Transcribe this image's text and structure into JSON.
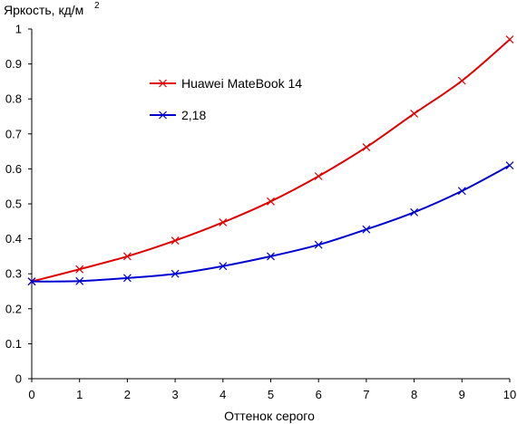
{
  "chart_data": {
    "type": "line",
    "ylabel": "Яркость, кд/м",
    "ylabel_sup": "2",
    "xlabel": "Оттенок серого",
    "xlim": [
      0,
      10
    ],
    "ylim": [
      0,
      1
    ],
    "x_ticks": [
      "0",
      "1",
      "2",
      "3",
      "4",
      "5",
      "6",
      "7",
      "8",
      "9",
      "10"
    ],
    "y_ticks": [
      "0",
      "0.1",
      "0.2",
      "0.3",
      "0.4",
      "0.5",
      "0.6",
      "0.7",
      "0.8",
      "0.9",
      "1"
    ],
    "grid": false,
    "legend_position": "upper-left",
    "x": [
      0,
      1,
      2,
      3,
      4,
      5,
      6,
      7,
      8,
      9,
      10
    ],
    "series": [
      {
        "name": "Huawei MateBook 14",
        "color": "#e00000",
        "values": [
          0.278,
          0.313,
          0.35,
          0.395,
          0.447,
          0.507,
          0.579,
          0.662,
          0.758,
          0.852,
          0.97
        ]
      },
      {
        "name": "2,18",
        "color": "#0000d0",
        "values": [
          0.278,
          0.279,
          0.288,
          0.3,
          0.322,
          0.35,
          0.383,
          0.427,
          0.476,
          0.537,
          0.61
        ]
      }
    ],
    "marker": "x-cross-icon"
  }
}
